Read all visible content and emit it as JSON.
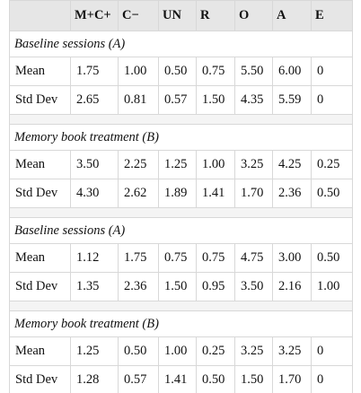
{
  "table": {
    "columns": [
      "M+C+",
      "C−",
      "UN",
      "R",
      "O",
      "A",
      "E"
    ],
    "sections": [
      {
        "title": "Baseline sessions (A)",
        "rows": [
          {
            "label": "Mean",
            "values": [
              "1.75",
              "1.00",
              "0.50",
              "0.75",
              "5.50",
              "6.00",
              "0"
            ]
          },
          {
            "label": "Std Dev",
            "values": [
              "2.65",
              "0.81",
              "0.57",
              "1.50",
              "4.35",
              "5.59",
              "0"
            ]
          }
        ]
      },
      {
        "title": "Memory book treatment (B)",
        "rows": [
          {
            "label": "Mean",
            "values": [
              "3.50",
              "2.25",
              "1.25",
              "1.00",
              "3.25",
              "4.25",
              "0.25"
            ]
          },
          {
            "label": "Std Dev",
            "values": [
              "4.30",
              "2.62",
              "1.89",
              "1.41",
              "1.70",
              "2.36",
              "0.50"
            ]
          }
        ]
      },
      {
        "title": "Baseline sessions (A)",
        "rows": [
          {
            "label": "Mean",
            "values": [
              "1.12",
              "1.75",
              "0.75",
              "0.75",
              "4.75",
              "3.00",
              "0.50"
            ]
          },
          {
            "label": "Std Dev",
            "values": [
              "1.35",
              "2.36",
              "1.50",
              "0.95",
              "3.50",
              "2.16",
              "1.00"
            ]
          }
        ]
      },
      {
        "title": "Memory book treatment (B)",
        "rows": [
          {
            "label": "Mean",
            "values": [
              "1.25",
              "0.50",
              "1.00",
              "0.25",
              "3.25",
              "3.25",
              "0"
            ]
          },
          {
            "label": "Std Dev",
            "values": [
              "1.28",
              "0.57",
              "1.41",
              "0.50",
              "1.50",
              "1.70",
              "0"
            ]
          }
        ]
      }
    ]
  }
}
